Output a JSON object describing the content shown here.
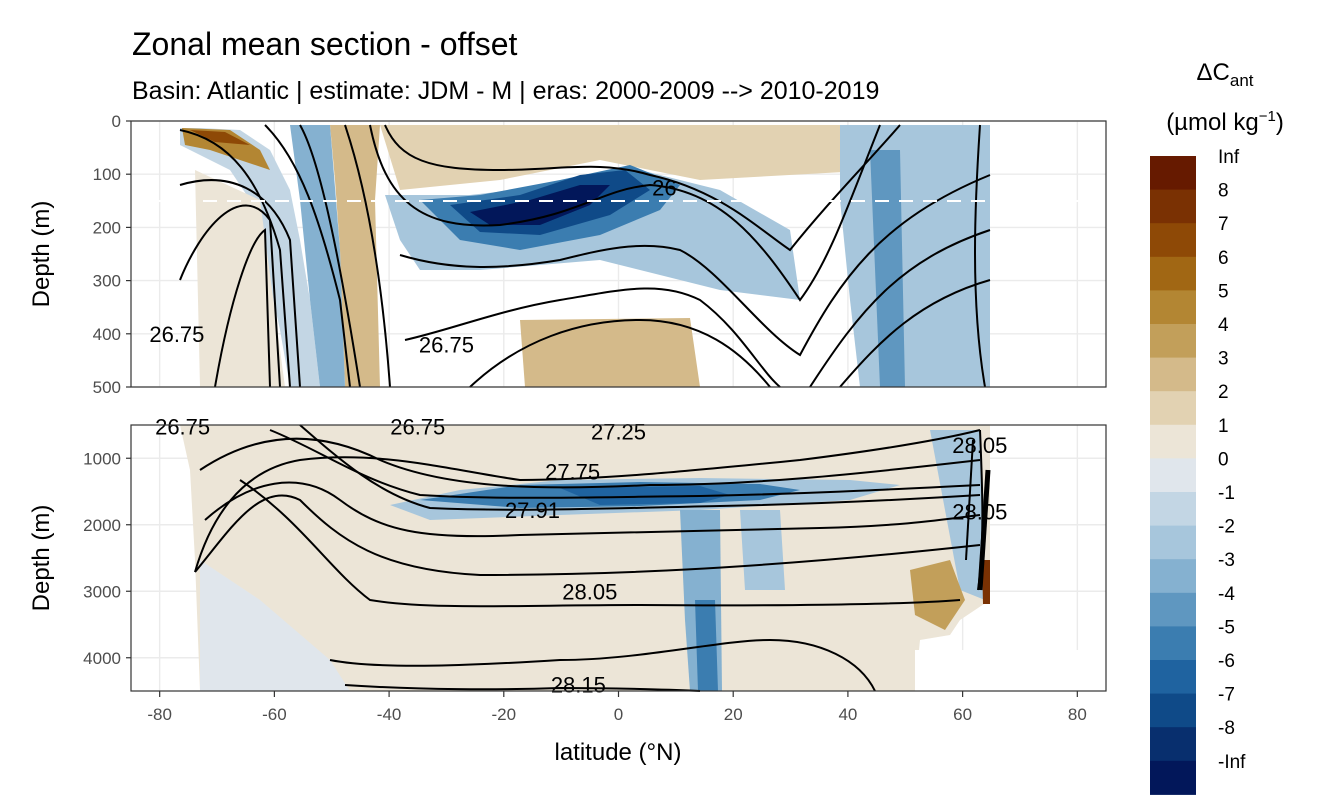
{
  "chart_data": {
    "type": "heatmap",
    "title": "Zonal mean section - offset",
    "subtitle": "Basin: Atlantic | estimate: JDM - M | eras: 2000-2009 --> 2010-2019",
    "xlabel": "latitude (°N)",
    "x_ticks": [
      "-80",
      "-60",
      "-40",
      "-20",
      "0",
      "20",
      "40",
      "60",
      "80"
    ],
    "xlim": [
      -85,
      85
    ],
    "reference_line": {
      "depth": 150,
      "style": "dashed",
      "color": "#ffffff"
    },
    "panels": [
      {
        "name": "upper",
        "ylabel": "Depth (m)",
        "ylim": [
          0,
          500
        ],
        "y_ticks": [
          "0",
          "100",
          "200",
          "300",
          "400",
          "500"
        ],
        "contour_labels": [
          {
            "text": "26",
            "lat": 8,
            "depth": 125
          },
          {
            "text": "26.75",
            "lat": -30,
            "depth": 420
          },
          {
            "text": "26.75",
            "lat": -77,
            "depth": 400
          }
        ]
      },
      {
        "name": "lower",
        "ylabel": "Depth (m)",
        "ylim": [
          500,
          4500
        ],
        "y_ticks": [
          "1000",
          "2000",
          "3000",
          "4000"
        ],
        "contour_labels": [
          {
            "text": "26.75",
            "lat": -76,
            "depth": 520
          },
          {
            "text": "26.75",
            "lat": -35,
            "depth": 520
          },
          {
            "text": "27.25",
            "lat": 0,
            "depth": 600
          },
          {
            "text": "27.75",
            "lat": -8,
            "depth": 1200
          },
          {
            "text": "27.91",
            "lat": -15,
            "depth": 1780
          },
          {
            "text": "28.05",
            "lat": -5,
            "depth": 3000
          },
          {
            "text": "28.15",
            "lat": -7,
            "depth": 4400
          },
          {
            "text": "28.05",
            "lat": 63,
            "depth": 800
          },
          {
            "text": "28.05",
            "lat": 63,
            "depth": 1800
          }
        ]
      }
    ],
    "legend": {
      "title_main": "ΔC",
      "title_sub": "ant",
      "unit_main": "(µmol kg",
      "unit_sup": "−1",
      "unit_end": ")",
      "levels": [
        "Inf",
        "8",
        "7",
        "6",
        "5",
        "4",
        "3",
        "2",
        "1",
        "0",
        "-1",
        "-2",
        "-3",
        "-4",
        "-5",
        "-6",
        "-7",
        "-8",
        "-Inf"
      ],
      "colors": [
        "#661a00",
        "#7a3103",
        "#8e4906",
        "#a16714",
        "#b38633",
        "#c29f5a",
        "#d4ba8a",
        "#e2d2b2",
        "#ece5d7",
        "#e0e6ec",
        "#c3d6e4",
        "#a7c6dc",
        "#85b1d0",
        "#5f97c0",
        "#3b7db0",
        "#1f63a0",
        "#0f4a88",
        "#082f6e",
        "#02175a"
      ]
    },
    "sample_field": [
      {
        "lat": -72,
        "d0": 0,
        "d1": 130,
        "level": 4
      },
      {
        "lat": -62,
        "d0": 0,
        "d1": 500,
        "level": 1
      },
      {
        "lat": -55,
        "d0": 0,
        "d1": 500,
        "level": -2
      },
      {
        "lat": -45,
        "d0": 0,
        "d1": 200,
        "level": 2
      },
      {
        "lat": -40,
        "d0": 0,
        "d1": 500,
        "level": -2
      },
      {
        "lat": -30,
        "d0": 0,
        "d1": 150,
        "level": 1
      },
      {
        "lat": -20,
        "d0": 150,
        "d1": 260,
        "level": -7
      },
      {
        "lat": -5,
        "d0": 80,
        "d1": 220,
        "level": -6
      },
      {
        "lat": 5,
        "d0": 100,
        "d1": 200,
        "level": -4
      },
      {
        "lat": -12,
        "d0": 350,
        "d1": 500,
        "level": 2
      },
      {
        "lat": 5,
        "d0": 350,
        "d1": 500,
        "level": 2
      },
      {
        "lat": 30,
        "d0": 0,
        "d1": 200,
        "level": 1
      },
      {
        "lat": 40,
        "d0": 200,
        "d1": 500,
        "level": -2
      },
      {
        "lat": 55,
        "d0": 0,
        "d1": 500,
        "level": -2
      },
      {
        "lat": -65,
        "d0": 500,
        "d1": 4500,
        "level": 1
      },
      {
        "lat": -45,
        "d0": 800,
        "d1": 4000,
        "level": 1
      },
      {
        "lat": -5,
        "d0": 1500,
        "d1": 1900,
        "level": -5
      },
      {
        "lat": 15,
        "d0": 1500,
        "d1": 1800,
        "level": -4
      },
      {
        "lat": 15,
        "d0": 1900,
        "d1": 4500,
        "level": -3
      },
      {
        "lat": 25,
        "d0": 1800,
        "d1": 2800,
        "level": -2
      },
      {
        "lat": 30,
        "d0": 2500,
        "d1": 4500,
        "level": 1
      },
      {
        "lat": 55,
        "d0": 3000,
        "d1": 3600,
        "level": 3
      },
      {
        "lat": 63,
        "d0": 2800,
        "d1": 3200,
        "level": 8
      }
    ]
  }
}
